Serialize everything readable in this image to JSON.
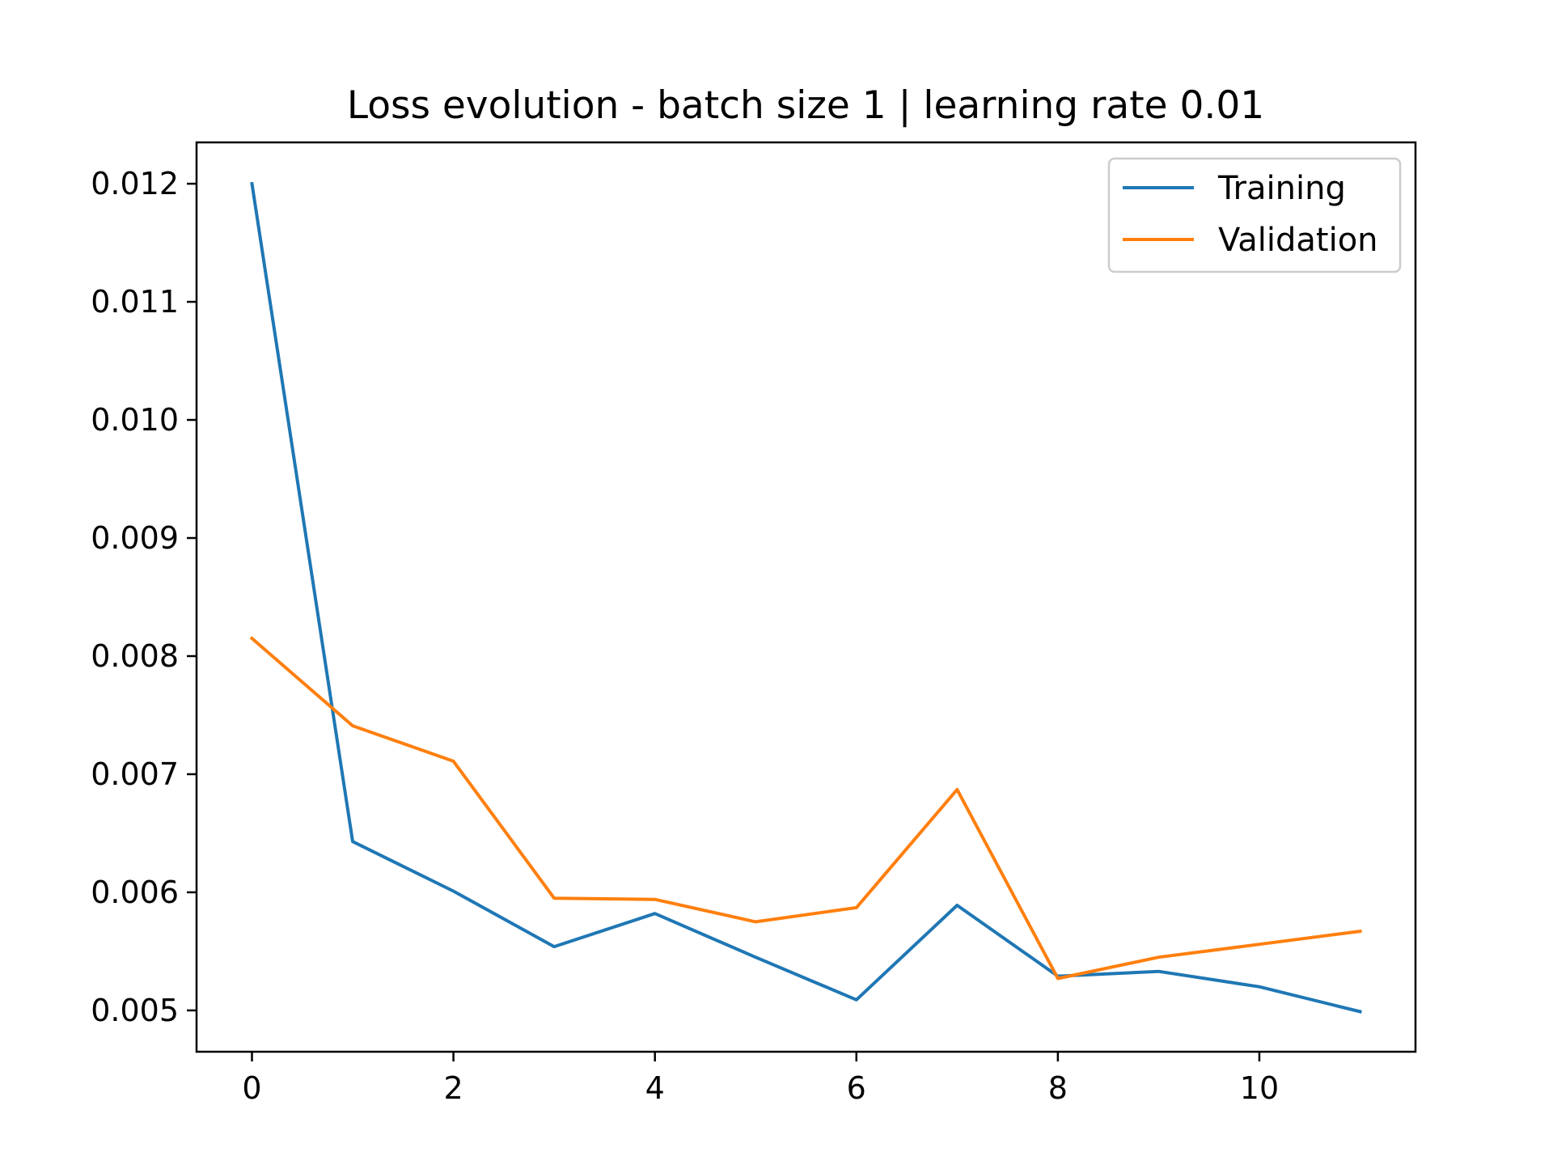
{
  "chart_data": {
    "type": "line",
    "title": "Loss evolution - batch size 1 | learning rate 0.01",
    "xlabel": "",
    "ylabel": "",
    "x": [
      0,
      1,
      2,
      3,
      4,
      5,
      6,
      7,
      8,
      9,
      10,
      11
    ],
    "xlim": [
      -0.55,
      11.55
    ],
    "ylim": [
      0.00465,
      0.01235
    ],
    "xticks": [
      0,
      2,
      4,
      6,
      8,
      10
    ],
    "xtick_labels": [
      "0",
      "2",
      "4",
      "6",
      "8",
      "10"
    ],
    "yticks": [
      0.005,
      0.006,
      0.007,
      0.008,
      0.009,
      0.01,
      0.011,
      0.012
    ],
    "ytick_labels": [
      "0.005",
      "0.006",
      "0.007",
      "0.008",
      "0.009",
      "0.010",
      "0.011",
      "0.012"
    ],
    "grid": false,
    "legend_position": "top-right",
    "series": [
      {
        "name": "Training",
        "color": "#1f77b4",
        "values": [
          0.012,
          0.00643,
          0.00601,
          0.00554,
          0.00582,
          0.00545,
          0.00509,
          0.00589,
          0.00529,
          0.00533,
          0.0052,
          0.00499
        ]
      },
      {
        "name": "Validation",
        "color": "#ff7f0e",
        "values": [
          0.00815,
          0.00741,
          0.00711,
          0.00595,
          0.00594,
          0.00575,
          0.00587,
          0.00687,
          0.00527,
          0.00545,
          0.00556,
          0.00567
        ]
      }
    ]
  }
}
